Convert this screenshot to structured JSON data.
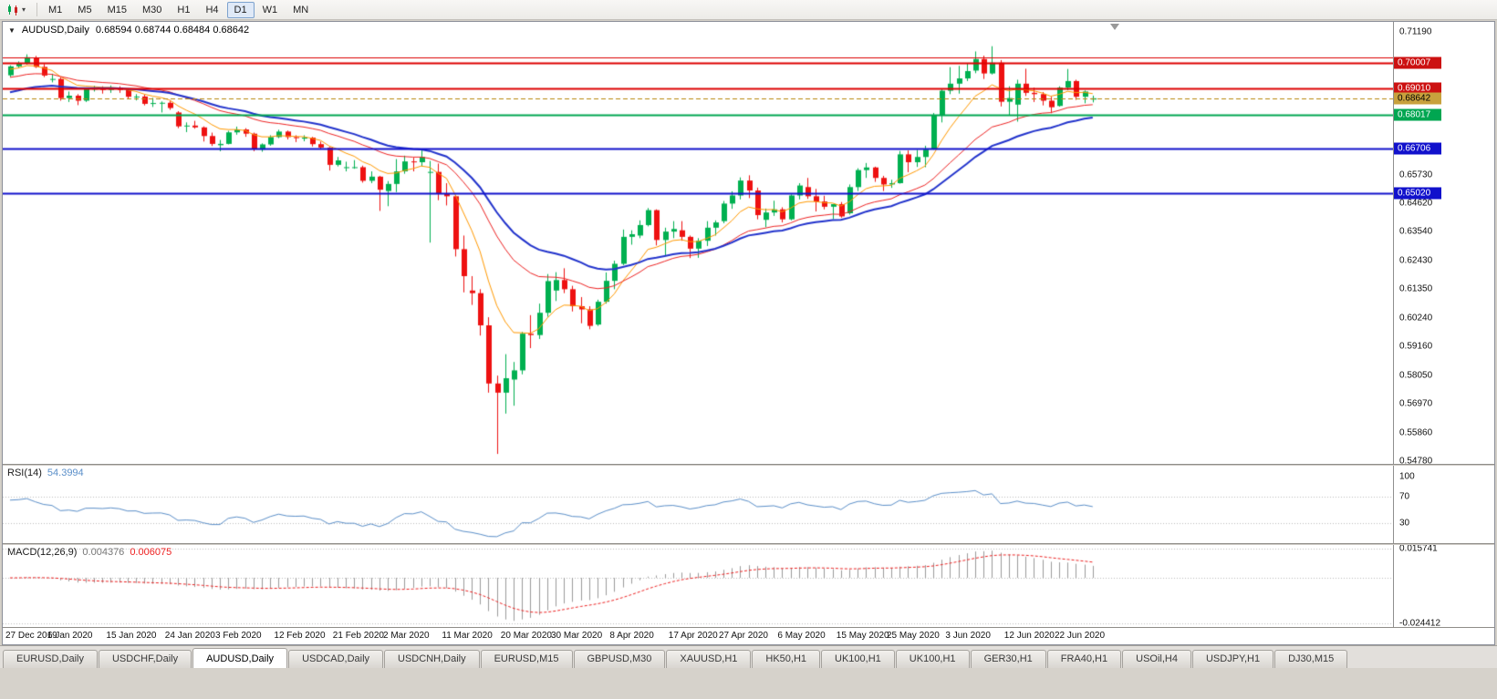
{
  "app": {
    "background": "#d4d0c8"
  },
  "toolbar": {
    "chart_type_icon": "candlestick-chart-icon",
    "dropdown_icon": "chevron-down-icon",
    "timeframes": [
      "M1",
      "M5",
      "M15",
      "M30",
      "H1",
      "H4",
      "D1",
      "W1",
      "MN"
    ],
    "active_timeframe": "D1"
  },
  "chart": {
    "symbol_period": "AUDUSD,Daily",
    "ohlc": "0.68594 0.68744 0.68484 0.68642"
  },
  "indicators": {
    "rsi": {
      "label": "RSI(14)",
      "value": "54.3994",
      "scale_labels": [
        "100",
        "70",
        "30"
      ]
    },
    "macd": {
      "label": "MACD(12,26,9)",
      "value_main": "0.004376",
      "value_signal": "0.006075",
      "scale_top": "0.015741",
      "scale_bottom": "-0.024412"
    }
  },
  "price_scale": {
    "plain_labels": [
      "0.71190",
      "0.65730",
      "0.64620",
      "0.63540",
      "0.62430",
      "0.61350",
      "0.60240",
      "0.59160",
      "0.58050",
      "0.56970",
      "0.55860",
      "0.54780"
    ]
  },
  "tabs": {
    "items": [
      "EURUSD,Daily",
      "USDCHF,Daily",
      "AUDUSD,Daily",
      "USDCAD,Daily",
      "USDCNH,Daily",
      "EURUSD,M15",
      "GBPUSD,M30",
      "XAUUSD,H1",
      "HK50,H1",
      "UK100,H1",
      "UK100,H1",
      "GER30,H1",
      "FRA40,H1",
      "USOil,H4",
      "USDJPY,H1",
      "DJ30,M15"
    ],
    "active": "AUDUSD,Daily",
    "active_index": 2
  },
  "chart_data": {
    "type": "candlestick",
    "symbol": "AUDUSD",
    "period": "Daily",
    "title": "AUDUSD,Daily",
    "ylim": [
      0.5468,
      0.7156
    ],
    "colors": {
      "bull": "#00b050",
      "bear": "#ee1111",
      "background": "#ffffff"
    },
    "candles": [
      [
        0.6952,
        0.699,
        0.6945,
        0.6986
      ],
      [
        0.6986,
        0.7005,
        0.698,
        0.6996
      ],
      [
        0.6996,
        0.7032,
        0.6993,
        0.7021
      ],
      [
        0.7018,
        0.7026,
        0.698,
        0.6984
      ],
      [
        0.6984,
        0.6995,
        0.6945,
        0.6951
      ],
      [
        0.6935,
        0.6958,
        0.6925,
        0.6938
      ],
      [
        0.6938,
        0.6944,
        0.6855,
        0.6865
      ],
      [
        0.6865,
        0.689,
        0.685,
        0.6874
      ],
      [
        0.6874,
        0.688,
        0.6838,
        0.6855
      ],
      [
        0.6855,
        0.6905,
        0.685,
        0.69
      ],
      [
        0.6898,
        0.6912,
        0.689,
        0.6901
      ],
      [
        0.6901,
        0.691,
        0.6882,
        0.6896
      ],
      [
        0.6896,
        0.6913,
        0.6885,
        0.6905
      ],
      [
        0.6905,
        0.691,
        0.6885,
        0.6896
      ],
      [
        0.6896,
        0.69,
        0.6862,
        0.687
      ],
      [
        0.6868,
        0.688,
        0.6856,
        0.6871
      ],
      [
        0.6871,
        0.6878,
        0.6837,
        0.6843
      ],
      [
        0.6843,
        0.6866,
        0.6831,
        0.6846
      ],
      [
        0.6846,
        0.6852,
        0.681,
        0.6847
      ],
      [
        0.6847,
        0.6855,
        0.682,
        0.6827
      ],
      [
        0.681,
        0.6815,
        0.675,
        0.6757
      ],
      [
        0.6757,
        0.6772,
        0.6735,
        0.676
      ],
      [
        0.676,
        0.6778,
        0.6748,
        0.6753
      ],
      [
        0.6753,
        0.6757,
        0.6699,
        0.672
      ],
      [
        0.672,
        0.6733,
        0.6682,
        0.669
      ],
      [
        0.6685,
        0.6705,
        0.6662,
        0.669
      ],
      [
        0.669,
        0.674,
        0.6688,
        0.6734
      ],
      [
        0.6734,
        0.6756,
        0.6725,
        0.6745
      ],
      [
        0.6745,
        0.675,
        0.6717,
        0.6729
      ],
      [
        0.6729,
        0.6733,
        0.6662,
        0.667
      ],
      [
        0.6668,
        0.6692,
        0.666,
        0.6688
      ],
      [
        0.6688,
        0.6723,
        0.6683,
        0.6716
      ],
      [
        0.6716,
        0.6744,
        0.6712,
        0.6737
      ],
      [
        0.6737,
        0.6741,
        0.6707,
        0.6716
      ],
      [
        0.6716,
        0.6723,
        0.6697,
        0.6712
      ],
      [
        0.671,
        0.6723,
        0.67,
        0.6714
      ],
      [
        0.6714,
        0.6717,
        0.668,
        0.6689
      ],
      [
        0.6689,
        0.6699,
        0.6668,
        0.6676
      ],
      [
        0.6676,
        0.6678,
        0.6588,
        0.661
      ],
      [
        0.661,
        0.664,
        0.6604,
        0.6627
      ],
      [
        0.66,
        0.6622,
        0.6585,
        0.6601
      ],
      [
        0.6601,
        0.6628,
        0.6595,
        0.6601
      ],
      [
        0.6601,
        0.6607,
        0.6542,
        0.6549
      ],
      [
        0.6549,
        0.6585,
        0.654,
        0.6565
      ],
      [
        0.6565,
        0.6568,
        0.6434,
        0.6515
      ],
      [
        0.651,
        0.6548,
        0.6452,
        0.6537
      ],
      [
        0.6537,
        0.6632,
        0.6506,
        0.6585
      ],
      [
        0.6585,
        0.6645,
        0.6576,
        0.6623
      ],
      [
        0.6623,
        0.6637,
        0.6585,
        0.662
      ],
      [
        0.662,
        0.667,
        0.6604,
        0.664
      ],
      [
        0.658,
        0.6625,
        0.6313,
        0.6583
      ],
      [
        0.6583,
        0.6615,
        0.6475,
        0.65
      ],
      [
        0.65,
        0.654,
        0.6455,
        0.649
      ],
      [
        0.649,
        0.6495,
        0.626,
        0.6288
      ],
      [
        0.6288,
        0.634,
        0.6123,
        0.6185
      ],
      [
        0.613,
        0.6185,
        0.6075,
        0.612
      ],
      [
        0.612,
        0.6135,
        0.5958,
        0.5997
      ],
      [
        0.5997,
        0.6028,
        0.574,
        0.5775
      ],
      [
        0.5775,
        0.5805,
        0.5506,
        0.574
      ],
      [
        0.574,
        0.5887,
        0.566,
        0.5795
      ],
      [
        0.579,
        0.5857,
        0.569,
        0.5825
      ],
      [
        0.5825,
        0.5972,
        0.581,
        0.5965
      ],
      [
        0.5965,
        0.6036,
        0.591,
        0.596
      ],
      [
        0.596,
        0.608,
        0.5945,
        0.6045
      ],
      [
        0.6045,
        0.6193,
        0.603,
        0.6166
      ],
      [
        0.613,
        0.62,
        0.609,
        0.617
      ],
      [
        0.617,
        0.6215,
        0.612,
        0.6135
      ],
      [
        0.6135,
        0.6148,
        0.605,
        0.607
      ],
      [
        0.607,
        0.6105,
        0.6005,
        0.6058
      ],
      [
        0.6058,
        0.607,
        0.5982,
        0.5995
      ],
      [
        0.6,
        0.6095,
        0.5995,
        0.6087
      ],
      [
        0.6087,
        0.6199,
        0.608,
        0.6167
      ],
      [
        0.6167,
        0.6244,
        0.6135,
        0.6232
      ],
      [
        0.6232,
        0.6363,
        0.6227,
        0.6335
      ],
      [
        0.6335,
        0.636,
        0.6305,
        0.6345
      ],
      [
        0.634,
        0.6398,
        0.633,
        0.638
      ],
      [
        0.638,
        0.6445,
        0.6375,
        0.6437
      ],
      [
        0.6437,
        0.644,
        0.6302,
        0.6323
      ],
      [
        0.6323,
        0.637,
        0.6265,
        0.6355
      ],
      [
        0.6355,
        0.6395,
        0.633,
        0.6365
      ],
      [
        0.636,
        0.6395,
        0.632,
        0.6335
      ],
      [
        0.6335,
        0.634,
        0.6254,
        0.629
      ],
      [
        0.629,
        0.633,
        0.6255,
        0.632
      ],
      [
        0.632,
        0.6395,
        0.63,
        0.637
      ],
      [
        0.637,
        0.6398,
        0.634,
        0.639
      ],
      [
        0.6395,
        0.6472,
        0.6387,
        0.6462
      ],
      [
        0.6462,
        0.6509,
        0.6442,
        0.6493
      ],
      [
        0.6493,
        0.6562,
        0.6478,
        0.655
      ],
      [
        0.655,
        0.657,
        0.6483,
        0.6512
      ],
      [
        0.6512,
        0.6523,
        0.6402,
        0.6418
      ],
      [
        0.64,
        0.6443,
        0.6372,
        0.6428
      ],
      [
        0.6428,
        0.6473,
        0.6415,
        0.644
      ],
      [
        0.644,
        0.6448,
        0.639,
        0.6402
      ],
      [
        0.6402,
        0.6497,
        0.6398,
        0.6493
      ],
      [
        0.6493,
        0.654,
        0.6478,
        0.6531
      ],
      [
        0.6525,
        0.656,
        0.648,
        0.649
      ],
      [
        0.649,
        0.6518,
        0.6432,
        0.647
      ],
      [
        0.647,
        0.6492,
        0.644,
        0.645
      ],
      [
        0.645,
        0.646,
        0.6403,
        0.646
      ],
      [
        0.646,
        0.6468,
        0.6408,
        0.6413
      ],
      [
        0.6425,
        0.6535,
        0.642,
        0.6525
      ],
      [
        0.6525,
        0.6597,
        0.651,
        0.659
      ],
      [
        0.659,
        0.6617,
        0.656,
        0.66
      ],
      [
        0.66,
        0.6603,
        0.6545,
        0.656
      ],
      [
        0.656,
        0.6568,
        0.651,
        0.6535
      ],
      [
        0.6535,
        0.6553,
        0.6522,
        0.654
      ],
      [
        0.654,
        0.6663,
        0.6538,
        0.665
      ],
      [
        0.665,
        0.6665,
        0.6582,
        0.662
      ],
      [
        0.662,
        0.6667,
        0.6602,
        0.664
      ],
      [
        0.664,
        0.6683,
        0.6601,
        0.6668
      ],
      [
        0.667,
        0.6808,
        0.6668,
        0.68
      ],
      [
        0.68,
        0.6898,
        0.6772,
        0.6893
      ],
      [
        0.6893,
        0.6983,
        0.688,
        0.692
      ],
      [
        0.692,
        0.6988,
        0.6882,
        0.694
      ],
      [
        0.694,
        0.6998,
        0.693,
        0.6968
      ],
      [
        0.697,
        0.7043,
        0.696,
        0.7014
      ],
      [
        0.7014,
        0.7027,
        0.6938,
        0.6959
      ],
      [
        0.6959,
        0.7063,
        0.6955,
        0.7
      ],
      [
        0.7,
        0.701,
        0.6833,
        0.6851
      ],
      [
        0.6851,
        0.691,
        0.68,
        0.6865
      ],
      [
        0.684,
        0.6935,
        0.6775,
        0.692
      ],
      [
        0.692,
        0.6977,
        0.6873,
        0.6885
      ],
      [
        0.6885,
        0.6905,
        0.685,
        0.688
      ],
      [
        0.688,
        0.6888,
        0.6837,
        0.6855
      ],
      [
        0.6855,
        0.687,
        0.6807,
        0.683
      ],
      [
        0.6835,
        0.691,
        0.6832,
        0.6905
      ],
      [
        0.6905,
        0.6976,
        0.6895,
        0.693
      ],
      [
        0.693,
        0.6935,
        0.6858,
        0.687
      ],
      [
        0.687,
        0.6894,
        0.6845,
        0.689
      ],
      [
        0.68594,
        0.68744,
        0.68484,
        0.68642
      ]
    ],
    "x_labels": [
      [
        0,
        "27 Dec 2019"
      ],
      [
        5,
        "6 Jan 2020"
      ],
      [
        12,
        "15 Jan 2020"
      ],
      [
        19,
        "24 Jan 2020"
      ],
      [
        25,
        "3 Feb 2020"
      ],
      [
        32,
        "12 Feb 2020"
      ],
      [
        39,
        "21 Feb 2020"
      ],
      [
        45,
        "2 Mar 2020"
      ],
      [
        52,
        "11 Mar 2020"
      ],
      [
        59,
        "20 Mar 2020"
      ],
      [
        65,
        "30 Mar 2020"
      ],
      [
        72,
        "8 Apr 2020"
      ],
      [
        79,
        "17 Apr 2020"
      ],
      [
        85,
        "27 Apr 2020"
      ],
      [
        92,
        "6 May 2020"
      ],
      [
        99,
        "15 May 2020"
      ],
      [
        105,
        "25 May 2020"
      ],
      [
        112,
        "3 Jun 2020"
      ],
      [
        119,
        "12 Jun 2020"
      ],
      [
        125,
        "22 Jun 2020"
      ]
    ],
    "hlines": [
      {
        "price": 0.702,
        "color": "#dd0000",
        "width": 1
      },
      {
        "price": 0.70007,
        "color": "#dd0000",
        "width": 2,
        "label": "0.70007",
        "label_bg": "#cc1111",
        "label_fg": "#ffffff"
      },
      {
        "price": 0.6901,
        "color": "#dd0000",
        "width": 2,
        "label": "0.69010",
        "label_bg": "#cc1111",
        "label_fg": "#ffffff"
      },
      {
        "price": 0.68642,
        "color": "#b8860b",
        "width": 1,
        "dash": [
          5,
          3
        ],
        "label": "0.68642",
        "label_bg": "#c8a13d",
        "label_fg": "#000000"
      },
      {
        "price": 0.68017,
        "color": "#00a651",
        "width": 2,
        "label": "0.68017",
        "label_bg": "#00a651",
        "label_fg": "#ffffff"
      },
      {
        "price": 0.66706,
        "color": "#1111cc",
        "width": 2,
        "label": "0.66706",
        "label_bg": "#1111cc",
        "label_fg": "#ffffff"
      },
      {
        "price": 0.6502,
        "color": "#1111cc",
        "width": 2,
        "label": "0.65020",
        "label_bg": "#1111cc",
        "label_fg": "#ffffff"
      }
    ],
    "overlays": [
      {
        "name": "ma-fast",
        "type": "ema",
        "period": 8,
        "color": "#ff9900",
        "width": 1,
        "seed": 0.6972
      },
      {
        "name": "ma-medium",
        "type": "ema",
        "period": 21,
        "color": "#ee2222",
        "width": 1,
        "seed": 0.694
      },
      {
        "name": "ma-slow",
        "type": "ema",
        "period": 30,
        "color": "#2233cc",
        "width": 2,
        "seed": 0.688
      }
    ],
    "indicators": {
      "rsi": {
        "period": 14,
        "color": "#5b8fc9",
        "levels": [
          70,
          30
        ],
        "range": [
          0,
          117
        ],
        "seed_gain": 0.0026,
        "seed_loss": 0.0014
      },
      "macd": {
        "fast": 12,
        "slow": 26,
        "signal": 9,
        "histogram_color": "#9a9a9a",
        "signal_color": "#ee2222",
        "signal_dash": [
          3,
          2
        ]
      }
    }
  }
}
